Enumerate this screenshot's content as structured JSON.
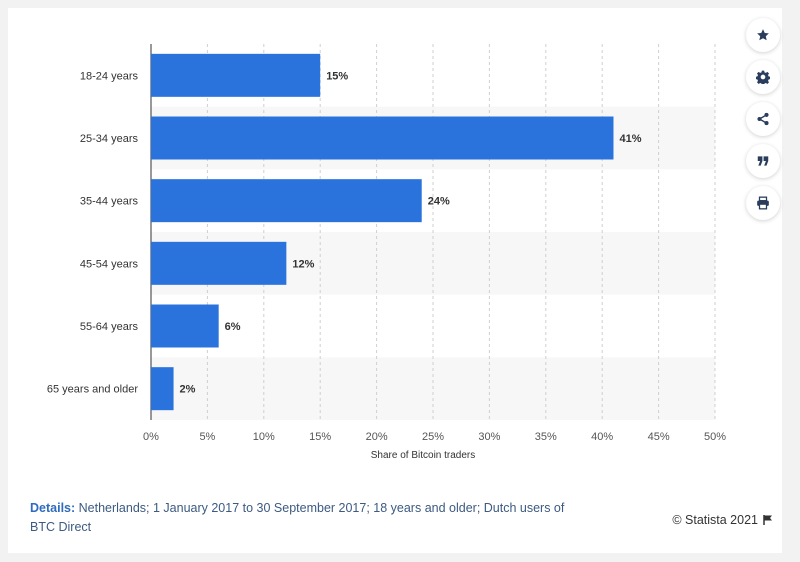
{
  "chart_data": {
    "type": "bar",
    "orientation": "horizontal",
    "categories": [
      "18-24 years",
      "25-34 years",
      "35-44 years",
      "45-54 years",
      "55-64 years",
      "65 years and older"
    ],
    "values": [
      15,
      41,
      24,
      12,
      6,
      2
    ],
    "value_labels": [
      "15%",
      "41%",
      "24%",
      "12%",
      "6%",
      "2%"
    ],
    "xlabel": "Share of Bitcoin traders",
    "ylabel": "",
    "xlim": [
      0,
      50
    ],
    "x_ticks": [
      "0%",
      "5%",
      "10%",
      "15%",
      "20%",
      "25%",
      "30%",
      "35%",
      "40%",
      "45%",
      "50%"
    ],
    "grid": true,
    "bar_color": "#2b73dc"
  },
  "footer": {
    "details_label": "Details:",
    "details_text": "Netherlands; 1 January 2017 to 30 September 2017; 18 years and older; Dutch users of BTC Direct",
    "copyright": "© Statista 2021"
  },
  "sidebar": {
    "buttons": [
      {
        "icon": "star-icon"
      },
      {
        "icon": "gear-icon"
      },
      {
        "icon": "share-icon"
      },
      {
        "icon": "quote-icon"
      },
      {
        "icon": "print-icon"
      }
    ]
  },
  "colors": {
    "accent": "#2b73dc",
    "icon": "#2a3d5c",
    "details": "#2f6bbf"
  }
}
